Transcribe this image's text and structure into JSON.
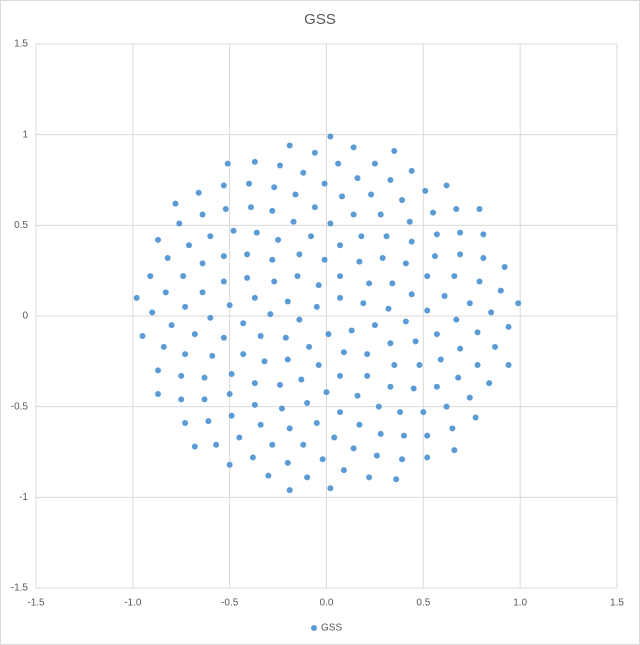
{
  "chart_data": {
    "type": "scatter",
    "title": "GSS",
    "xlim": [
      -1.5,
      1.5
    ],
    "xticks": [
      -1.5,
      {
        "value": -1,
        "label": "-1.0"
      },
      -0.5,
      {
        "value": 0,
        "label": "0.0"
      },
      0.5,
      {
        "value": 1,
        "label": "1.0"
      },
      1.5
    ],
    "ylim": [
      -1.5,
      1.5
    ],
    "yticks": [
      -1.5,
      -1,
      -0.5,
      0,
      0.5,
      1,
      1.5
    ],
    "grid": true,
    "legend": "bottom",
    "series": [
      {
        "name": "GSS",
        "color": "#5b9bd5",
        "x": [
          -0.05,
          0.01,
          0.07,
          -0.14,
          0.13,
          -0.04,
          -0.09,
          0.19,
          -0.2,
          0.09,
          0.07,
          -0.21,
          0.25,
          -0.15,
          -0.04,
          0.22,
          -0.29,
          0.21,
          -0.01,
          -0.2,
          0.32,
          -0.27,
          0.07,
          0.17,
          -0.34,
          0.33,
          -0.14,
          -0.13,
          0.34,
          -0.37,
          0.21,
          0.07,
          -0.32,
          0.41,
          -0.28,
          0.0,
          0.29,
          -0.43,
          0.35,
          -0.08,
          -0.24,
          0.44,
          -0.41,
          0.16,
          0.18,
          -0.43,
          0.46,
          -0.25,
          -0.1,
          0.41,
          -0.5,
          0.33,
          0.02,
          -0.37,
          0.52,
          -0.41,
          0.07,
          0.31,
          -0.53,
          0.48,
          -0.17,
          -0.23,
          0.52,
          -0.53,
          0.27,
          0.14,
          -0.49,
          0.57,
          -0.36,
          -0.05,
          0.44,
          -0.6,
          0.45,
          -0.06,
          -0.37,
          0.61,
          -0.53,
          0.17,
          0.28,
          -0.59,
          0.59,
          -0.28,
          -0.19,
          0.56,
          -0.64,
          0.38,
          0.08,
          -0.5,
          0.67,
          -0.48,
          0.04,
          0.43,
          -0.68,
          0.57,
          -0.16,
          -0.34,
          0.66,
          -0.64,
          0.28,
          0.23,
          -0.63,
          0.69,
          -0.39,
          -0.12,
          0.57,
          -0.73,
          0.5,
          -0.01,
          -0.49,
          0.74,
          -0.6,
          0.14,
          0.39,
          -0.73,
          0.68,
          -0.27,
          -0.28,
          0.69,
          -0.74,
          0.4,
          0.16,
          -0.63,
          0.78,
          -0.52,
          -0.02,
          0.55,
          -0.8,
          0.62,
          -0.12,
          -0.45,
          0.79,
          -0.71,
          0.26,
          0.33,
          -0.75,
          0.78,
          -0.4,
          -0.2,
          0.69,
          -0.83,
          0.52,
          0.06,
          -0.61,
          0.85,
          -0.64,
          0.09,
          0.51,
          -0.84,
          0.74,
          -0.24,
          -0.38,
          0.81,
          -0.82,
          0.39,
          0.25,
          -0.75,
          0.87,
          -0.53,
          -0.1,
          0.67,
          -0.9,
          0.65,
          -0.06,
          -0.57,
          0.9,
          -0.76,
          0.22,
          0.44,
          -0.87,
          0.84,
          -0.37,
          -0.3,
          0.81,
          -0.91,
          0.52,
          0.14,
          -0.73,
          0.94,
          -0.66,
          0.02,
          0.62,
          -0.95,
          0.77,
          -0.19,
          -0.5,
          0.92,
          -0.87,
          0.36,
          0.35,
          -0.87,
          0.94,
          -0.51,
          -0.19,
          0.79,
          -0.98,
          0.66,
          0.02,
          -0.68,
          0.99,
          -0.78
        ],
        "values": [
          0.05,
          -0.1,
          0.1,
          -0.02,
          -0.08,
          0.17,
          -0.17,
          0.07,
          0.08,
          -0.2,
          0.22,
          -0.12,
          -0.05,
          0.22,
          -0.27,
          0.18,
          0.01,
          -0.21,
          0.31,
          -0.24,
          0.04,
          0.19,
          -0.33,
          0.3,
          -0.11,
          -0.15,
          0.34,
          -0.35,
          0.18,
          0.1,
          -0.33,
          0.39,
          -0.25,
          -0.03,
          0.31,
          -0.42,
          0.32,
          -0.04,
          -0.27,
          0.44,
          -0.38,
          0.12,
          0.21,
          -0.44,
          0.44,
          -0.21,
          -0.14,
          0.42,
          -0.48,
          0.29,
          0.06,
          -0.39,
          0.51,
          -0.37,
          0.03,
          0.34,
          -0.53,
          0.44,
          -0.12,
          -0.27,
          0.52,
          -0.51,
          0.22,
          0.19,
          -0.5,
          0.56,
          -0.32,
          -0.1,
          0.46,
          -0.59,
          0.41,
          -0.01,
          -0.4,
          0.6,
          -0.49,
          0.11,
          0.33,
          -0.6,
          0.56,
          -0.22,
          -0.24,
          0.58,
          -0.62,
          0.33,
          0.13,
          -0.53,
          0.66,
          -0.43,
          -0.02,
          0.47,
          -0.67,
          0.52,
          -0.1,
          -0.39,
          0.67,
          -0.6,
          0.22,
          0.29,
          -0.65,
          0.67,
          -0.34,
          -0.18,
          0.6,
          -0.71,
          0.45,
          0.05,
          -0.53,
          0.73,
          -0.55,
          0.07,
          0.44,
          -0.73,
          0.64,
          -0.21,
          -0.34,
          0.71,
          -0.71,
          0.34,
          0.22,
          -0.66,
          0.76,
          -0.46,
          -0.09,
          0.59,
          -0.79,
          0.57,
          -0.05,
          -0.5,
          0.79,
          -0.67,
          0.19,
          0.39,
          -0.77,
          0.75,
          -0.33,
          -0.27,
          0.73,
          -0.81,
          0.46,
          0.13,
          -0.66,
          0.84,
          -0.58,
          0.02,
          0.56,
          -0.85,
          0.69,
          -0.17,
          -0.45,
          0.83,
          -0.78,
          0.32,
          0.32,
          -0.79,
          0.84,
          -0.46,
          -0.17,
          0.72,
          -0.89,
          0.59,
          0.02,
          -0.62,
          0.9,
          -0.71,
          0.14,
          0.51,
          -0.89,
          0.8,
          -0.3,
          -0.37,
          0.85,
          -0.88,
          0.45,
          0.22,
          -0.78,
          0.93,
          -0.59,
          -0.06,
          0.68,
          -0.95,
          0.72,
          -0.11,
          -0.56,
          0.94,
          -0.82,
          0.27,
          0.42,
          -0.9,
          0.91,
          -0.43,
          -0.27,
          0.84,
          -0.96,
          0.59,
          0.1,
          -0.74,
          0.99,
          -0.72,
          0.07,
          0.62
        ]
      }
    ]
  }
}
